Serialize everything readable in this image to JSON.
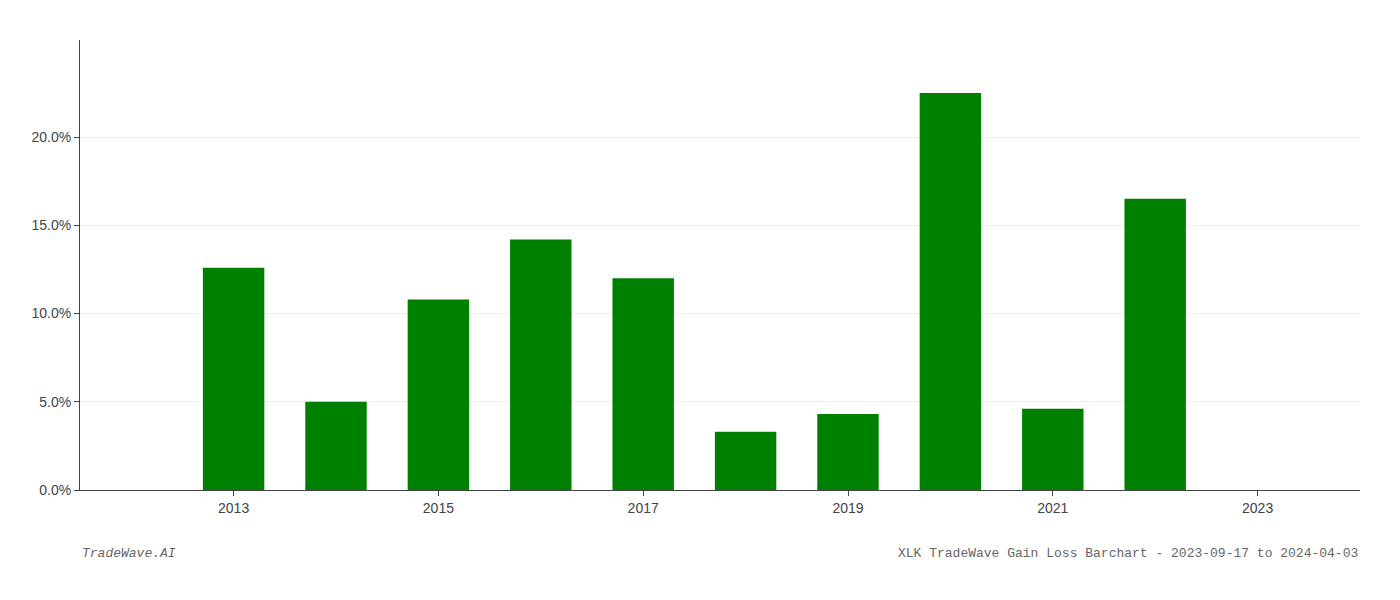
{
  "chart_data": {
    "type": "bar",
    "x": [
      2013,
      2014,
      2015,
      2016,
      2017,
      2018,
      2019,
      2020,
      2021,
      2022
    ],
    "values": [
      0.126,
      0.05,
      0.108,
      0.142,
      0.12,
      0.033,
      0.043,
      0.225,
      0.046,
      0.165
    ],
    "color": "#008000",
    "xlim": [
      2011.5,
      2024.0
    ],
    "xticks": [
      2013,
      2015,
      2017,
      2019,
      2021,
      2023
    ],
    "ylim": [
      0.0,
      0.255
    ],
    "yticks": [
      {
        "value": 0.0,
        "label": "0.0%"
      },
      {
        "value": 0.05,
        "label": "5.0%"
      },
      {
        "value": 0.1,
        "label": "10.0%"
      },
      {
        "value": 0.15,
        "label": "15.0%"
      },
      {
        "value": 0.2,
        "label": "20.0%"
      }
    ],
    "grid": true,
    "annotations": [
      "TradeWave.AI",
      "XLK TradeWave Gain Loss Barchart - 2023-09-17 to 2024-04-03"
    ]
  }
}
